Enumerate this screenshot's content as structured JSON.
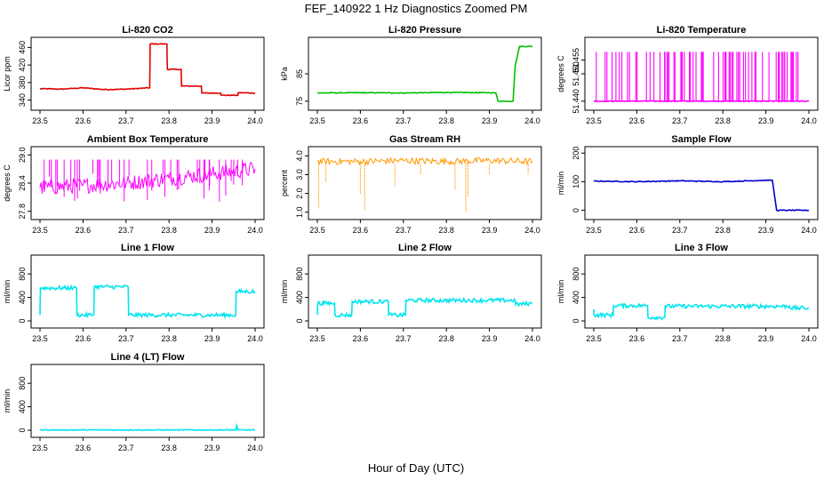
{
  "figure": {
    "title": "FEF_140922  1 Hz Diagnostics Zoomed PM",
    "xlabel": "Hour of Day (UTC)"
  },
  "chart_data": [
    {
      "type": "line",
      "title": "Li-820 CO2",
      "ylabel": "Licor ppm",
      "color": "#e00000",
      "xlim": [
        23.5,
        24.0
      ],
      "ylim": [
        325,
        475
      ],
      "xticks": [
        "23.5",
        "23.6",
        "23.7",
        "23.8",
        "23.9",
        "24.0"
      ],
      "yticks": [
        "340",
        "380",
        "420",
        "460"
      ],
      "yticks_values": [
        340,
        380,
        420,
        460
      ],
      "series": [
        {
          "x": [
            23.5,
            23.55,
            23.6,
            23.65,
            23.7,
            23.755,
            23.756,
            23.795,
            23.796,
            23.828,
            23.829,
            23.875,
            23.876,
            23.92,
            23.921,
            23.96,
            23.961,
            24.0
          ],
          "y": [
            366,
            365,
            368,
            364,
            365,
            368,
            468,
            468,
            410,
            410,
            372,
            372,
            356,
            356,
            351,
            351,
            357,
            356
          ]
        }
      ]
    },
    {
      "type": "line",
      "title": "Li-820 Pressure",
      "ylabel": "kPa",
      "color": "#00c000",
      "xlim": [
        23.5,
        24.0
      ],
      "ylim": [
        73,
        97
      ],
      "xticks": [
        "23.5",
        "23.6",
        "23.7",
        "23.8",
        "23.9",
        "24.0"
      ],
      "yticks": [
        "75",
        "85"
      ],
      "yticks_values": [
        75,
        85
      ],
      "series": [
        {
          "x": [
            23.5,
            23.6,
            23.7,
            23.8,
            23.9,
            23.915,
            23.92,
            23.955,
            23.96,
            23.97,
            24.0
          ],
          "y": [
            78,
            78.1,
            78,
            78.2,
            78.1,
            78,
            75,
            75,
            88,
            95,
            95
          ]
        }
      ]
    },
    {
      "type": "line",
      "title": "Li-820 Temperature",
      "ylabel": "degrees C",
      "color": "#ff00ff",
      "xlim": [
        23.5,
        24.0
      ],
      "ylim": [
        51.438,
        51.462
      ],
      "xticks": [
        "23.5",
        "23.6",
        "23.7",
        "23.8",
        "23.9",
        "24.0"
      ],
      "yticks": [
        "51.440",
        "51.450",
        "51.455"
      ],
      "yticks_values": [
        51.44,
        51.45,
        51.455
      ],
      "series": [
        {
          "x": [
            23.5,
            24.0
          ],
          "y": [
            51.44,
            51.44
          ]
        }
      ]
    },
    {
      "type": "line",
      "title": "Ambient Box Temperature",
      "ylabel": "degrees C",
      "color": "#ff00ff",
      "xlim": [
        23.5,
        24.0
      ],
      "ylim": [
        27.7,
        29.1
      ],
      "xticks": [
        "23.5",
        "23.6",
        "23.7",
        "23.8",
        "23.9",
        "24.0"
      ],
      "yticks": [
        "27.8",
        "28.4",
        "29.0"
      ],
      "yticks_values": [
        27.8,
        28.4,
        29.0
      ],
      "series": [
        {
          "x": [
            23.5,
            23.6,
            23.7,
            23.8,
            23.9,
            24.0
          ],
          "y": [
            28.3,
            28.35,
            28.4,
            28.5,
            28.6,
            28.7
          ]
        }
      ]
    },
    {
      "type": "line",
      "title": "Gas Stream RH",
      "ylabel": "percent",
      "color": "#ff9900",
      "xlim": [
        23.5,
        24.0
      ],
      "ylim": [
        0.8,
        4.3
      ],
      "xticks": [
        "23.5",
        "23.6",
        "23.7",
        "23.8",
        "23.9",
        "24.0"
      ],
      "yticks": [
        "1.0",
        "2.0",
        "3.0",
        "4.0"
      ],
      "yticks_values": [
        1.0,
        2.0,
        3.0,
        4.0
      ],
      "series": [
        {
          "x": [
            23.5,
            23.6,
            23.7,
            23.8,
            23.9,
            24.0
          ],
          "y": [
            3.7,
            3.7,
            3.75,
            3.7,
            3.75,
            3.7
          ]
        }
      ]
    },
    {
      "type": "line",
      "title": "Sample Flow",
      "ylabel": "ml/min",
      "color": "#0000cc",
      "xlim": [
        23.5,
        24.0
      ],
      "ylim": [
        -20,
        210
      ],
      "xticks": [
        "23.5",
        "23.6",
        "23.7",
        "23.8",
        "23.9",
        "24.0"
      ],
      "yticks": [
        "0",
        "100",
        "200"
      ],
      "yticks_values": [
        0,
        100,
        200
      ],
      "series": [
        {
          "x": [
            23.5,
            23.6,
            23.7,
            23.8,
            23.9,
            23.915,
            23.925,
            24.0
          ],
          "y": [
            102,
            100,
            103,
            100,
            105,
            105,
            0,
            0
          ]
        }
      ]
    },
    {
      "type": "line",
      "title": "Line 1 Flow",
      "ylabel": "ml/min",
      "color": "#00e5ee",
      "xlim": [
        23.5,
        24.0
      ],
      "ylim": [
        -60,
        1060
      ],
      "xticks": [
        "23.5",
        "23.6",
        "23.7",
        "23.8",
        "23.9",
        "24.0"
      ],
      "yticks": [
        "0",
        "400",
        "800"
      ],
      "yticks_values": [
        0,
        400,
        800
      ],
      "series": [
        {
          "x": [
            23.5,
            23.501,
            23.585,
            23.586,
            23.625,
            23.626,
            23.705,
            23.706,
            23.955,
            23.956,
            24.0
          ],
          "y": [
            100,
            560,
            560,
            100,
            100,
            580,
            580,
            100,
            100,
            500,
            500
          ]
        }
      ]
    },
    {
      "type": "line",
      "title": "Line 2 Flow",
      "ylabel": "ml/min",
      "color": "#00e5ee",
      "xlim": [
        23.5,
        24.0
      ],
      "ylim": [
        -60,
        1060
      ],
      "xticks": [
        "23.5",
        "23.6",
        "23.7",
        "23.8",
        "23.9",
        "24.0"
      ],
      "yticks": [
        "0",
        "400",
        "800"
      ],
      "yticks_values": [
        0,
        400,
        800
      ],
      "series": [
        {
          "x": [
            23.5,
            23.501,
            23.54,
            23.541,
            23.58,
            23.581,
            23.665,
            23.666,
            23.705,
            23.706,
            23.96,
            23.961,
            24.0
          ],
          "y": [
            100,
            300,
            300,
            100,
            100,
            330,
            330,
            100,
            100,
            350,
            350,
            280,
            300
          ]
        }
      ]
    },
    {
      "type": "line",
      "title": "Line 3 Flow",
      "ylabel": "ml/min",
      "color": "#00e5ee",
      "xlim": [
        23.5,
        24.0
      ],
      "ylim": [
        -60,
        1060
      ],
      "xticks": [
        "23.5",
        "23.6",
        "23.7",
        "23.8",
        "23.9",
        "24.0"
      ],
      "yticks": [
        "0",
        "400",
        "800"
      ],
      "yticks_values": [
        0,
        400,
        800
      ],
      "series": [
        {
          "x": [
            23.5,
            23.501,
            23.545,
            23.546,
            23.625,
            23.626,
            23.665,
            23.666,
            23.955,
            23.956,
            24.0
          ],
          "y": [
            200,
            100,
            100,
            260,
            260,
            60,
            60,
            250,
            250,
            220,
            220
          ]
        }
      ]
    },
    {
      "type": "line",
      "title": "Line 4 (LT) Flow",
      "ylabel": "ml/min",
      "color": "#00e5ee",
      "xlim": [
        23.5,
        24.0
      ],
      "ylim": [
        -60,
        1060
      ],
      "xticks": [
        "23.5",
        "23.6",
        "23.7",
        "23.8",
        "23.9",
        "24.0"
      ],
      "yticks": [
        "0",
        "400",
        "800"
      ],
      "yticks_values": [
        0,
        400,
        800
      ],
      "series": [
        {
          "x": [
            23.5,
            23.955,
            23.957,
            23.96,
            24.0
          ],
          "y": [
            5,
            5,
            80,
            5,
            5
          ]
        }
      ]
    }
  ]
}
